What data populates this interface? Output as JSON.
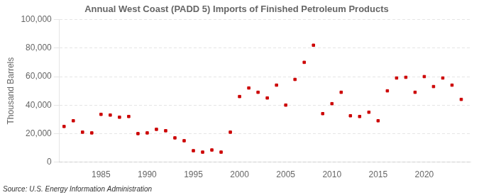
{
  "chart_data": {
    "type": "scatter",
    "title": "Annual West Coast (PADD 5) Imports of Finished Petroleum Products",
    "ylabel": "Thousand Barrels",
    "source": "Source: U.S. Energy Information Administration",
    "x": [
      1981,
      1982,
      1983,
      1984,
      1985,
      1986,
      1987,
      1988,
      1989,
      1990,
      1991,
      1992,
      1993,
      1994,
      1995,
      1996,
      1997,
      1998,
      1999,
      2000,
      2001,
      2002,
      2003,
      2004,
      2005,
      2006,
      2007,
      2008,
      2009,
      2010,
      2011,
      2012,
      2013,
      2014,
      2015,
      2016,
      2017,
      2018,
      2019,
      2020,
      2021,
      2022,
      2023,
      2024
    ],
    "values": [
      25000,
      29000,
      21000,
      20500,
      33500,
      33000,
      31500,
      32000,
      20000,
      20500,
      23000,
      22000,
      17000,
      15000,
      8000,
      7000,
      8500,
      7000,
      21000,
      46000,
      52000,
      49000,
      45000,
      54000,
      40000,
      58000,
      70000,
      82000,
      34000,
      41000,
      49000,
      32500,
      32000,
      35000,
      29000,
      50000,
      59000,
      59500,
      49000,
      60000,
      53000,
      59000,
      54000,
      44000
    ],
    "color": "#cc0000",
    "marker": "square",
    "xlim": [
      1980.5,
      2025
    ],
    "ylim": [
      0,
      100000
    ],
    "xticks": [
      1985,
      1990,
      1995,
      2000,
      2005,
      2010,
      2015,
      2020
    ],
    "yticks": [
      0,
      {
        "value": 20000,
        "label": "20,000"
      },
      {
        "value": 40000,
        "label": "40,000"
      },
      {
        "value": 60000,
        "label": "60,000"
      },
      {
        "value": 80000,
        "label": "80,000"
      },
      {
        "value": 100000,
        "label": "100,000"
      }
    ],
    "grid": "y"
  }
}
